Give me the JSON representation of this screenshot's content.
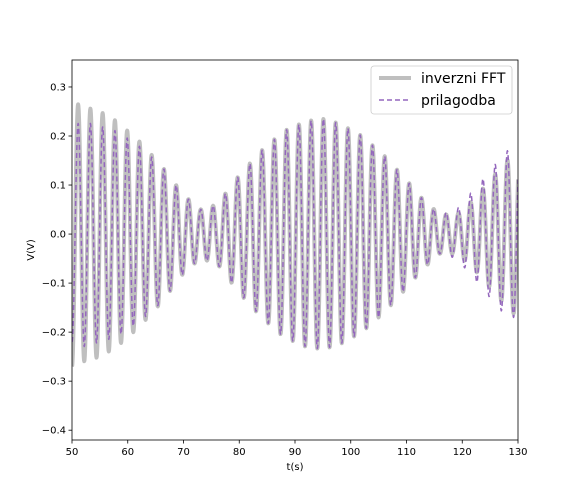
{
  "chart_data": {
    "type": "line",
    "title": "",
    "xlabel": "t(s)",
    "ylabel": "V(V)",
    "xlim": [
      50,
      130
    ],
    "ylim": [
      -0.42,
      0.355
    ],
    "xticks": [
      "50",
      "60",
      "70",
      "80",
      "90",
      "100",
      "110",
      "120",
      "130"
    ],
    "yticks": [
      "−0.4",
      "−0.3",
      "−0.2",
      "−0.1",
      "0.0",
      "0.1",
      "0.2",
      "0.3"
    ],
    "grid": false,
    "legend_position": "top-right",
    "series": [
      {
        "name": "inverzni FFT",
        "style": "solid",
        "color": "#bfbfbf",
        "carrier_period": 2.2,
        "envelope": {
          "t": [
            50,
            52,
            55,
            58,
            62,
            66,
            70,
            73,
            76,
            80,
            84,
            88,
            92,
            95,
            98,
            102,
            106,
            110,
            113,
            116,
            119,
            122,
            125,
            128,
            130
          ],
          "amp": [
            0.27,
            0.26,
            0.25,
            0.23,
            0.19,
            0.14,
            0.08,
            0.05,
            0.06,
            0.12,
            0.17,
            0.21,
            0.23,
            0.235,
            0.225,
            0.2,
            0.16,
            0.11,
            0.07,
            0.04,
            0.04,
            0.07,
            0.11,
            0.15,
            0.17
          ]
        }
      },
      {
        "name": "prilagodba",
        "style": "dashed",
        "color": "#9467bd",
        "carrier_period": 2.2,
        "envelope": {
          "t": [
            50,
            52,
            55,
            58,
            62,
            66,
            70,
            73,
            76,
            80,
            84,
            88,
            92,
            95,
            98,
            102,
            106,
            110,
            113,
            116,
            119,
            122,
            125,
            128,
            130
          ],
          "amp": [
            0.22,
            0.23,
            0.22,
            0.21,
            0.18,
            0.14,
            0.08,
            0.05,
            0.06,
            0.12,
            0.17,
            0.21,
            0.23,
            0.235,
            0.225,
            0.2,
            0.16,
            0.11,
            0.07,
            0.04,
            0.05,
            0.09,
            0.13,
            0.17,
            0.17
          ]
        }
      }
    ]
  }
}
